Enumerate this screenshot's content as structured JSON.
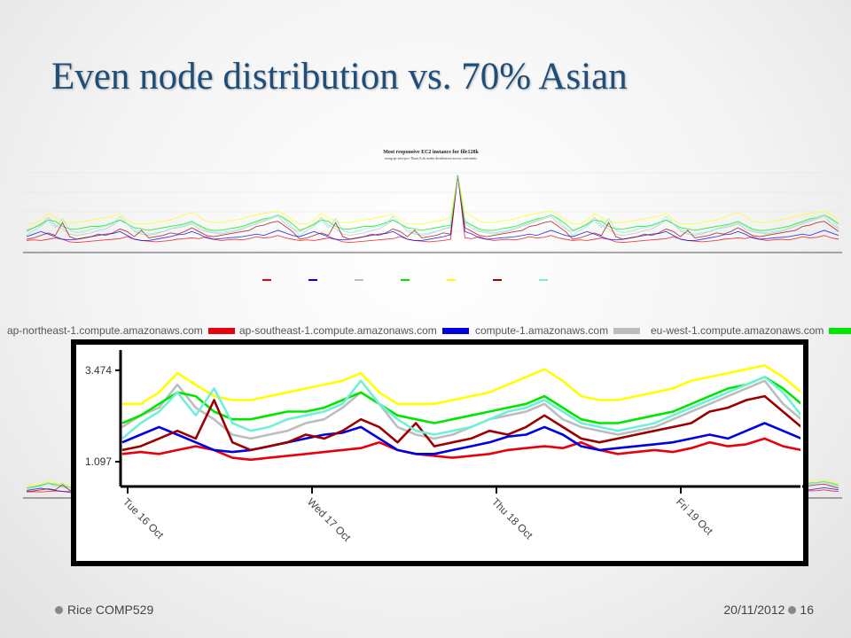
{
  "slide": {
    "title": "Even node distribution vs. 70% Asian",
    "footer_left": "Rice COMP529",
    "footer_date": "20/11/2012",
    "page_number": "16"
  },
  "small_chart": {
    "title": "Most responsive EC2 instance for file128k",
    "subtitle": "using ap-east-pcs-Tkaet.0.ak nodes distribution across continents"
  },
  "chart_data": {
    "type": "line",
    "x_tick_labels": [
      "Tue 16 Oct",
      "Wed 17 Oct",
      "Thu 18 Oct",
      "Fri 19 Oct"
    ],
    "y_tick_labels": [
      "3.474",
      "1.097"
    ],
    "ylim": [
      0.5,
      4.0
    ],
    "legend_placement": "top",
    "legend": [
      {
        "name": "ap-northeast-1.compute.amazonaws.com",
        "color": "#e8000b"
      },
      {
        "name": "ap-southeast-1.compute.amazonaws.com",
        "color": "#0000e0"
      },
      {
        "name": "compute-1.amazonaws.com",
        "color": "#bdbdbd"
      },
      {
        "name": "eu-west-1.compute.amazonaws.com",
        "color": "#00e600"
      }
    ],
    "series": [
      {
        "name": "ap-northeast-1.compute.amazonaws.com",
        "color": "#e8000b",
        "values": [
          1.3,
          1.35,
          1.3,
          1.4,
          1.5,
          1.4,
          1.2,
          1.15,
          1.2,
          1.25,
          1.3,
          1.35,
          1.4,
          1.45,
          1.6,
          1.4,
          1.3,
          1.25,
          1.2,
          1.25,
          1.3,
          1.4,
          1.45,
          1.5,
          1.45,
          1.6,
          1.4,
          1.3,
          1.35,
          1.4,
          1.35,
          1.45,
          1.6,
          1.5,
          1.55,
          1.7,
          1.5,
          1.4
        ]
      },
      {
        "name": "ap-southeast-1.compute.amazonaws.com",
        "color": "#0000e0",
        "values": [
          1.6,
          1.8,
          2.0,
          1.8,
          1.6,
          1.4,
          1.35,
          1.4,
          1.5,
          1.6,
          1.7,
          1.8,
          1.85,
          2.0,
          1.7,
          1.4,
          1.3,
          1.3,
          1.4,
          1.5,
          1.6,
          1.75,
          1.8,
          2.0,
          1.8,
          1.5,
          1.4,
          1.45,
          1.5,
          1.55,
          1.6,
          1.7,
          1.8,
          1.7,
          1.9,
          2.1,
          1.9,
          1.7
        ]
      },
      {
        "name": "compute-1.amazonaws.com",
        "color": "#bdbdbd",
        "values": [
          2.0,
          2.3,
          2.5,
          3.1,
          2.5,
          2.2,
          1.8,
          1.7,
          1.8,
          1.9,
          2.1,
          2.2,
          2.5,
          2.9,
          2.6,
          2.0,
          1.8,
          1.7,
          1.8,
          2.0,
          2.2,
          2.3,
          2.4,
          2.6,
          2.2,
          2.0,
          1.9,
          1.8,
          1.9,
          2.0,
          2.2,
          2.4,
          2.6,
          2.8,
          3.0,
          3.2,
          2.6,
          2.2
        ]
      },
      {
        "name": "eu-west-1.compute.amazonaws.com",
        "color": "#00e600",
        "values": [
          2.1,
          2.3,
          2.6,
          2.9,
          2.8,
          2.4,
          2.2,
          2.2,
          2.3,
          2.4,
          2.4,
          2.5,
          2.7,
          2.9,
          2.6,
          2.3,
          2.2,
          2.1,
          2.2,
          2.3,
          2.4,
          2.5,
          2.6,
          2.8,
          2.5,
          2.2,
          2.1,
          2.1,
          2.2,
          2.3,
          2.4,
          2.6,
          2.8,
          3.0,
          3.1,
          3.3,
          3.0,
          2.6
        ]
      },
      {
        "name": "",
        "color": "#ffff00",
        "values": [
          2.6,
          2.6,
          2.9,
          3.4,
          3.1,
          2.8,
          2.7,
          2.7,
          2.8,
          2.9,
          3.0,
          3.1,
          3.2,
          3.4,
          2.9,
          2.6,
          2.6,
          2.6,
          2.7,
          2.8,
          2.9,
          3.1,
          3.3,
          3.5,
          3.2,
          2.8,
          2.7,
          2.7,
          2.8,
          2.9,
          3.0,
          3.2,
          3.3,
          3.4,
          3.5,
          3.6,
          3.3,
          2.9
        ]
      },
      {
        "name": "",
        "color": "#9b0000",
        "values": [
          1.4,
          1.5,
          1.7,
          1.9,
          1.7,
          2.7,
          1.6,
          1.4,
          1.5,
          1.6,
          1.8,
          1.7,
          1.9,
          2.2,
          2.0,
          1.6,
          2.1,
          1.5,
          1.6,
          1.7,
          1.9,
          1.8,
          2.0,
          2.3,
          2.0,
          1.7,
          1.6,
          1.7,
          1.8,
          1.9,
          2.0,
          2.1,
          2.4,
          2.5,
          2.7,
          2.8,
          2.4,
          2.0
        ]
      },
      {
        "name": "",
        "color": "#70f0d8",
        "values": [
          1.7,
          2.1,
          2.4,
          2.9,
          2.3,
          3.0,
          2.1,
          1.9,
          2.0,
          2.2,
          2.3,
          2.4,
          2.6,
          3.2,
          2.6,
          2.2,
          1.9,
          1.8,
          1.9,
          2.0,
          2.2,
          2.4,
          2.5,
          2.7,
          2.4,
          2.1,
          2.0,
          1.9,
          2.0,
          2.1,
          2.3,
          2.5,
          2.7,
          2.9,
          3.1,
          3.3,
          2.9,
          2.3
        ]
      }
    ]
  }
}
